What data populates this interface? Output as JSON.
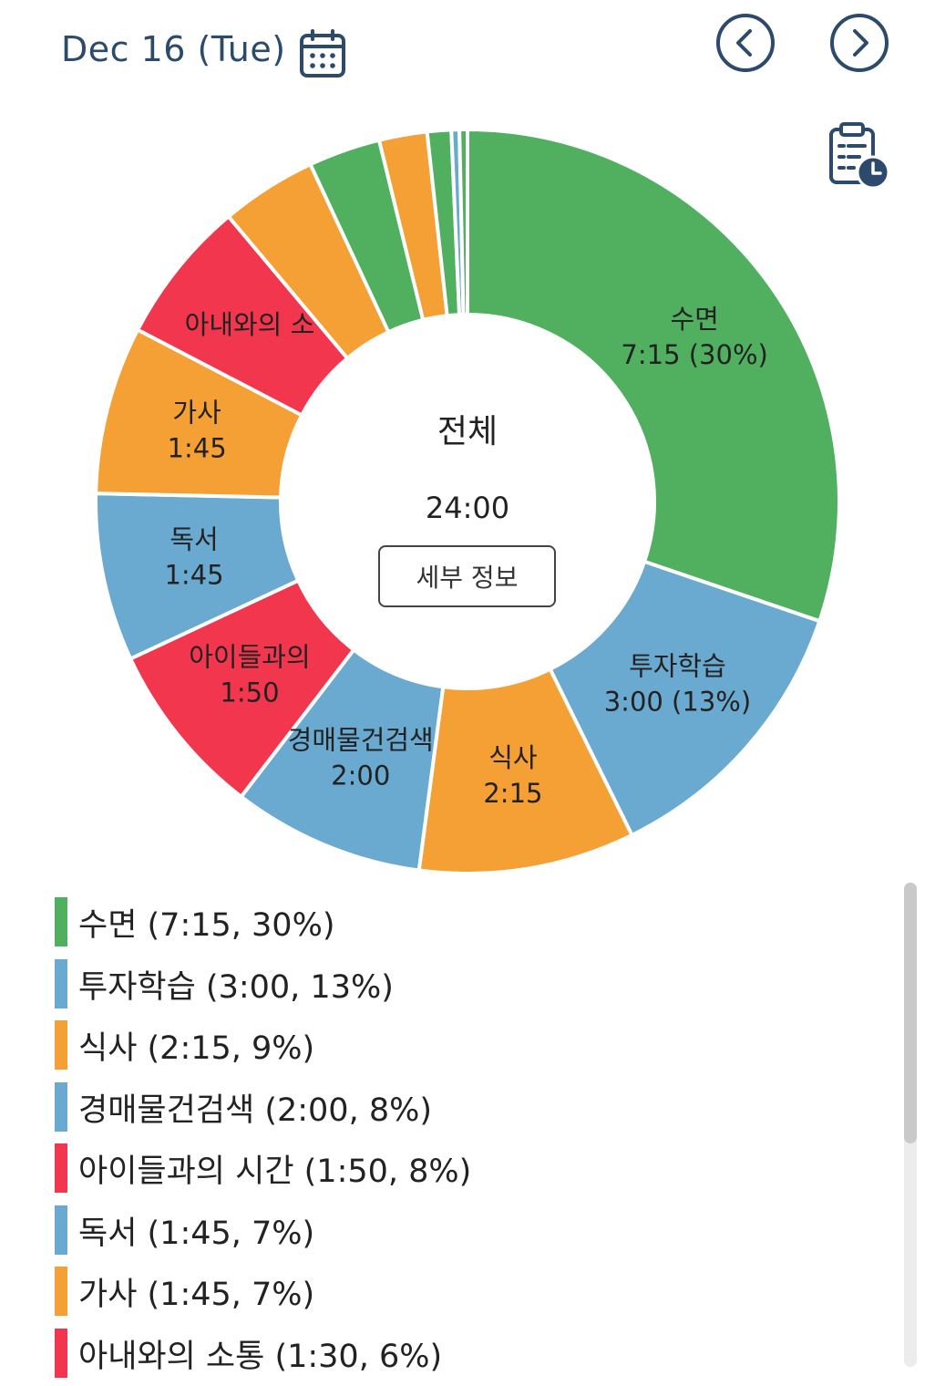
{
  "header": {
    "date": "Dec 16 (Tue)",
    "calendar_icon": "calendar-icon",
    "prev_icon": "chevron-left-circle-icon",
    "next_icon": "chevron-right-circle-icon",
    "history_icon": "clipboard-clock-icon"
  },
  "colors": {
    "green": "#50b060",
    "blue": "#6aaad0",
    "orange": "#f4a035",
    "red": "#f2364e",
    "header": "#2c4a6b"
  },
  "center": {
    "title": "전체",
    "total": "24:00",
    "detail_button": "세부 정보"
  },
  "chart_data": {
    "type": "pie",
    "total": "24:00",
    "slices": [
      {
        "name": "수면",
        "duration": "7:15",
        "percent": 30,
        "color": "#50b060",
        "label_lines": [
          "수면",
          "7:15 (30%)"
        ]
      },
      {
        "name": "투자학습",
        "duration": "3:00",
        "percent": 13,
        "color": "#6aaad0",
        "label_lines": [
          "투자학습",
          "3:00 (13%)"
        ]
      },
      {
        "name": "식사",
        "duration": "2:15",
        "percent": 9,
        "color": "#f4a035",
        "label_lines": [
          "식사",
          "2:15"
        ]
      },
      {
        "name": "경매물건검색",
        "duration": "2:00",
        "percent": 8,
        "color": "#6aaad0",
        "label_lines": [
          "경매물건검색",
          "2:00"
        ]
      },
      {
        "name": "아이들과의 시간",
        "duration": "1:50",
        "percent": 8,
        "color": "#f2364e",
        "label_lines": [
          "아이들과의",
          "1:50"
        ]
      },
      {
        "name": "독서",
        "duration": "1:45",
        "percent": 7,
        "color": "#6aaad0",
        "label_lines": [
          "독서",
          "1:45"
        ]
      },
      {
        "name": "가사",
        "duration": "1:45",
        "percent": 7,
        "color": "#f4a035",
        "label_lines": [
          "가사",
          "1:45"
        ]
      },
      {
        "name": "아내와의 소통",
        "duration": "1:30",
        "percent": 6,
        "color": "#f2364e",
        "label_lines": [
          "아내와의 소"
        ]
      },
      {
        "name": "",
        "duration": "1:00",
        "color": "#f4a035",
        "label_lines": []
      },
      {
        "name": "",
        "duration": "0:45",
        "color": "#50b060",
        "label_lines": []
      },
      {
        "name": "",
        "duration": "0:30",
        "color": "#f4a035",
        "label_lines": []
      },
      {
        "name": "",
        "duration": "0:15",
        "color": "#50b060",
        "label_lines": []
      },
      {
        "name": "",
        "duration": "0:05",
        "color": "#6aaad0",
        "label_lines": []
      },
      {
        "name": "",
        "duration": "0:05",
        "color": "#50b060",
        "label_lines": []
      }
    ]
  },
  "legend": [
    {
      "label": "수면 (7:15, 30%)",
      "color": "#50b060"
    },
    {
      "label": "투자학습 (3:00, 13%)",
      "color": "#6aaad0"
    },
    {
      "label": "식사 (2:15, 9%)",
      "color": "#f4a035"
    },
    {
      "label": "경매물건검색 (2:00, 8%)",
      "color": "#6aaad0"
    },
    {
      "label": "아이들과의 시간 (1:50, 8%)",
      "color": "#f2364e"
    },
    {
      "label": "독서 (1:45, 7%)",
      "color": "#6aaad0"
    },
    {
      "label": "가사 (1:45, 7%)",
      "color": "#f4a035"
    },
    {
      "label": "아내와의 소통 (1:30, 6%)",
      "color": "#f2364e"
    }
  ]
}
